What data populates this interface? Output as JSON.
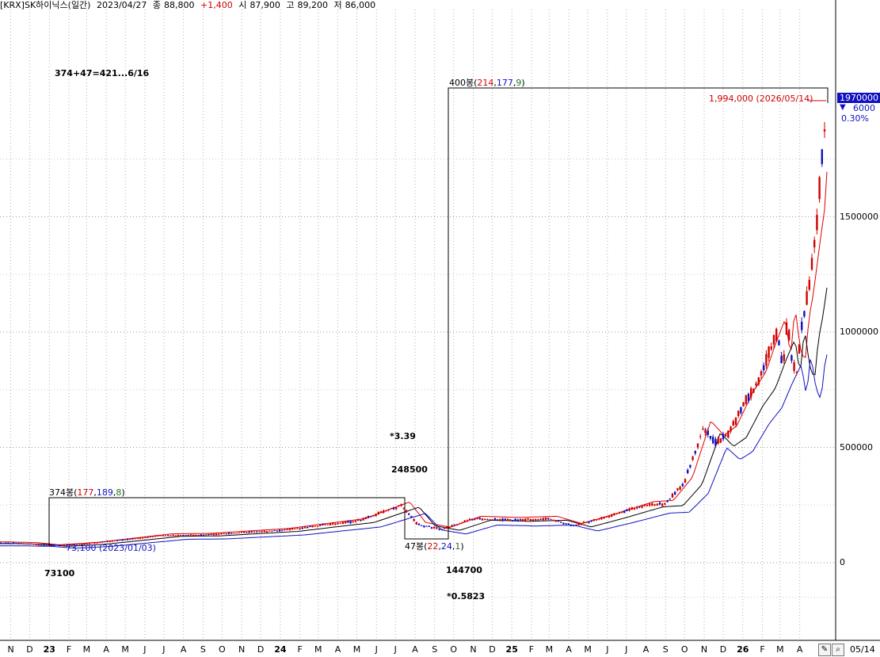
{
  "header": {
    "symbol": "[KRX]SK하이닉스(일간)",
    "date": "2023/04/27",
    "close_label": "종",
    "close": "88,800",
    "change": "+1,400",
    "open_label": "시",
    "open": "87,900",
    "high_label": "고",
    "high": "89,200",
    "low_label": "저",
    "low": "86,000"
  },
  "annotations": {
    "sum_text": "374+47=421...6/16",
    "mult_top": "*3.39",
    "peak_value": "248500",
    "trough_value": "144700",
    "mult_bottom": "*0.5823",
    "low_value": "73100",
    "low_marker": "73,100 (2023/01/03)",
    "target_marker": "1,994,000 (2026/05/14)",
    "box1": {
      "bars": "374봉",
      "a": "177",
      "b": "189",
      "c": "8"
    },
    "box2": {
      "bars": "47봉",
      "a": "22",
      "b": "24",
      "c": "1"
    },
    "box3": {
      "bars": "400봉",
      "a": "214",
      "b": "177",
      "c": "9"
    }
  },
  "price_panel": {
    "current_tag": "1970000",
    "tick_step": "6000",
    "pct": "0.30%"
  },
  "colors": {
    "up": "#d00000",
    "down": "#1010c0",
    "ma_red": "#e00000",
    "ma_blue": "#1010c0",
    "ma_black": "#000000"
  },
  "toolbar": {
    "date": "05/14",
    "edit_icon": "pencil-icon",
    "zoom_icon": "magnifier-icon"
  },
  "chart_data": {
    "type": "line",
    "title": "[KRX]SK하이닉스(일간)",
    "y_ticks": [
      "0",
      "500000",
      "1000000",
      "1500000"
    ],
    "ylim": [
      -250000,
      2050000
    ],
    "x_ticks": [
      "N",
      "D",
      "23",
      "F",
      "M",
      "A",
      "M",
      "J",
      "J",
      "A",
      "S",
      "O",
      "N",
      "D",
      "24",
      "F",
      "M",
      "A",
      "M",
      "J",
      "J",
      "A",
      "S",
      "O",
      "N",
      "D",
      "25",
      "F",
      "M",
      "A",
      "M",
      "J",
      "J",
      "A",
      "S",
      "O",
      "N",
      "D",
      "26",
      "F",
      "M",
      "A"
    ],
    "x_tick_months": [
      "2022-11",
      "2022-12",
      "2023-01",
      "2023-02",
      "2023-03",
      "2023-04",
      "2023-05",
      "2023-06",
      "2023-07",
      "2023-08",
      "2023-09",
      "2023-10",
      "2023-11",
      "2023-12",
      "2024-01",
      "2024-02",
      "2024-03",
      "2024-04",
      "2024-05",
      "2024-06",
      "2024-07",
      "2024-08",
      "2024-09",
      "2024-10",
      "2024-11",
      "2024-12",
      "2025-01",
      "2025-02",
      "2025-03",
      "2025-04",
      "2025-05",
      "2025-06",
      "2025-07",
      "2025-08",
      "2025-09",
      "2025-10",
      "2025-11",
      "2025-12",
      "2026-01",
      "2026-02",
      "2026-03",
      "2026-04"
    ],
    "grid": true,
    "series": [
      {
        "name": "SK하이닉스",
        "x": [
          "2022-10-15",
          "2022-12-01",
          "2023-01-03",
          "2023-03-01",
          "2023-05-01",
          "2023-07-01",
          "2023-09-01",
          "2023-11-01",
          "2024-01-02",
          "2024-03-01",
          "2024-05-01",
          "2024-07-11",
          "2024-08-05",
          "2024-09-13",
          "2024-11-01",
          "2025-01-02",
          "2025-03-01",
          "2025-04-09",
          "2025-06-01",
          "2025-08-01",
          "2025-09-01",
          "2025-10-01",
          "2025-10-30",
          "2025-11-20",
          "2025-12-10",
          "2026-01-05",
          "2026-01-25",
          "2026-02-10",
          "2026-02-25",
          "2026-03-05",
          "2026-03-12",
          "2026-03-20",
          "2026-03-28",
          "2026-04-03",
          "2026-04-10",
          "2026-04-20",
          "2026-04-28",
          "2026-05-05",
          "2026-05-14"
        ],
        "values": [
          85000,
          82000,
          73100,
          82000,
          100000,
          118000,
          120000,
          130000,
          140000,
          160000,
          180000,
          248500,
          165000,
          144700,
          190000,
          185000,
          190000,
          160000,
          200000,
          250000,
          255000,
          350000,
          580000,
          520000,
          560000,
          700000,
          780000,
          900000,
          1000000,
          840000,
          1050000,
          880000,
          820000,
          1000000,
          1100000,
          1300000,
          1450000,
          1750000,
          1970000
        ]
      }
    ]
  }
}
